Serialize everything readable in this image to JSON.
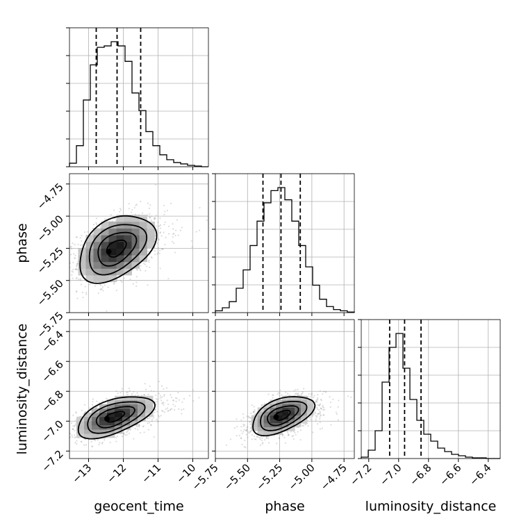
{
  "chart_data": {
    "type": "corner",
    "parameters": [
      {
        "key": "geocent_time",
        "label": "geocent_time",
        "range": [
          -13.55,
          -9.55
        ],
        "ticks": [
          -13,
          -12,
          -11,
          -10
        ],
        "tick_labels": [
          "−13",
          "−12",
          "−11",
          "−10"
        ],
        "quantiles": [
          -12.78,
          -12.18,
          -11.5
        ]
      },
      {
        "key": "phase",
        "label": "phase",
        "range": [
          -5.75,
          -4.67
        ],
        "ticks": [
          -5.75,
          -5.5,
          -5.25,
          -5.0,
          -4.75
        ],
        "tick_labels": [
          "−5.75",
          "−5.50",
          "−5.25",
          "−5.00",
          "−4.75"
        ],
        "quantiles": [
          -5.38,
          -5.24,
          -5.09
        ]
      },
      {
        "key": "luminosity_distance",
        "label": "luminosity_distance",
        "range": [
          -7.25,
          -6.32
        ],
        "ticks": [
          -7.2,
          -7.0,
          -6.8,
          -6.6,
          -6.4
        ],
        "tick_labels": [
          "−7.2",
          "−7.0",
          "−6.8",
          "−6.6",
          "−6.4"
        ],
        "quantiles": [
          -7.06,
          -6.96,
          -6.85
        ]
      }
    ],
    "histograms": {
      "geocent_time": {
        "edges": [
          -13.55,
          -13.35,
          -13.15,
          -12.95,
          -12.75,
          -12.55,
          -12.35,
          -12.15,
          -11.95,
          -11.75,
          -11.55,
          -11.35,
          -11.15,
          -10.95,
          -10.75,
          -10.55,
          -10.35,
          -10.15,
          -9.95,
          -9.75,
          -9.55
        ],
        "counts": [
          5,
          30,
          95,
          145,
          170,
          172,
          178,
          172,
          150,
          105,
          80,
          50,
          30,
          17,
          10,
          6,
          4,
          2,
          1,
          0
        ]
      },
      "phase": {
        "edges": [
          -5.75,
          -5.696,
          -5.642,
          -5.588,
          -5.534,
          -5.48,
          -5.426,
          -5.372,
          -5.318,
          -5.264,
          -5.21,
          -5.156,
          -5.102,
          -5.048,
          -4.994,
          -4.94,
          -4.886,
          -4.832,
          -4.778,
          -4.724,
          -4.67
        ],
        "counts": [
          3,
          8,
          18,
          40,
          70,
          110,
          150,
          180,
          200,
          205,
          185,
          150,
          110,
          75,
          45,
          22,
          10,
          5,
          3,
          1
        ]
      },
      "luminosity_distance": {
        "edges": [
          -7.25,
          -7.2035,
          -7.157,
          -7.1105,
          -7.064,
          -7.0175,
          -6.971,
          -6.9245,
          -6.878,
          -6.8315,
          -6.785,
          -6.7385,
          -6.692,
          -6.6455,
          -6.599,
          -6.5525,
          -6.506,
          -6.4595,
          -6.413,
          -6.3665,
          -6.32
        ],
        "counts": [
          2,
          12,
          40,
          110,
          160,
          180,
          130,
          85,
          55,
          35,
          25,
          15,
          10,
          6,
          4,
          2,
          1,
          1,
          0,
          0
        ]
      }
    },
    "joint": [
      {
        "x": "geocent_time",
        "y": "phase",
        "center": [
          -12.2,
          -5.25
        ],
        "sd": [
          0.55,
          0.13
        ],
        "corr": 0.4
      },
      {
        "x": "geocent_time",
        "y": "luminosity_distance",
        "center": [
          -12.25,
          -6.97
        ],
        "sd": [
          0.55,
          0.07
        ],
        "corr": 0.55
      },
      {
        "x": "phase",
        "y": "luminosity_distance",
        "center": [
          -5.23,
          -6.96
        ],
        "sd": [
          0.12,
          0.065
        ],
        "corr": 0.5
      }
    ],
    "contour_levels_sigma": [
      0.5,
      1.0,
      1.5,
      2.0
    ],
    "grid": true
  }
}
